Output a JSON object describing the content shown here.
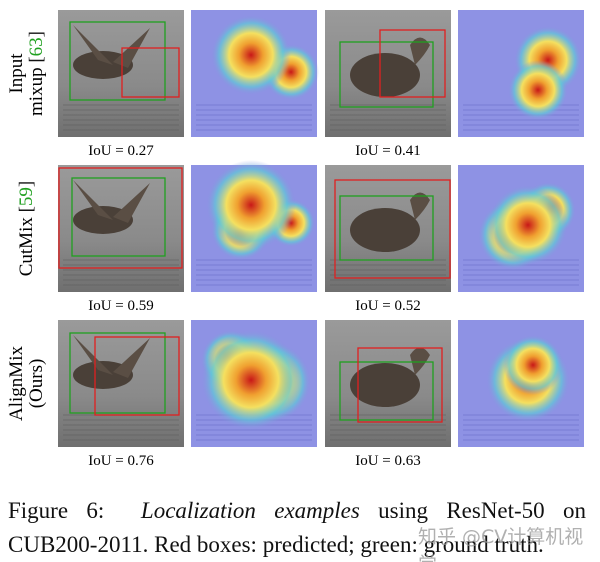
{
  "figure": {
    "rows": [
      {
        "label": [
          "Input",
          "mixup"
        ],
        "ref": [
          "[",
          "63",
          "]"
        ],
        "iou": [
          "IoU = 0.27",
          "IoU = 0.41"
        ]
      },
      {
        "label": [
          "CutMix"
        ],
        "ref": [
          "[",
          "59",
          "]"
        ],
        "iou": [
          "IoU = 0.59",
          "IoU = 0.52"
        ]
      },
      {
        "label": [
          "AlignMix",
          "(Ours)"
        ],
        "ref": null,
        "iou": [
          "IoU = 0.76",
          "IoU = 0.63"
        ]
      }
    ],
    "caption": {
      "label": "Figure 6:",
      "emphasis": "Localization examples",
      "text": "using ResNet-50 on CUB200-2011. Red boxes: predicted; green: ground truth."
    },
    "watermark": "知乎 @CV计算机视觉"
  }
}
